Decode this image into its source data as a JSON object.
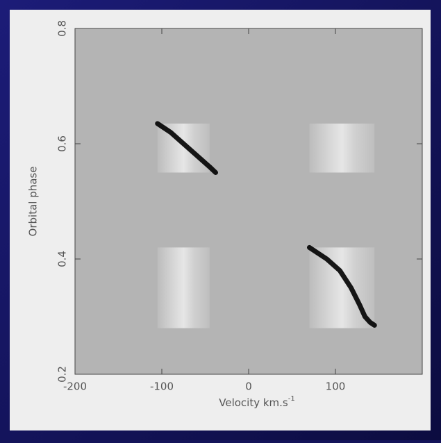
{
  "chart_data": {
    "type": "trailed-spectrum",
    "x_label": "Velocity  km.s",
    "x_label_superscript": "-1",
    "y_label": "Orbital phase",
    "xlim": [
      -200,
      200
    ],
    "ylim": [
      0.2,
      0.8
    ],
    "xticks": [
      -200,
      -100,
      0,
      100
    ],
    "yticks": [
      0.2,
      0.4,
      0.6,
      0.8
    ],
    "background": "#b4b4b4",
    "panels": [
      {
        "x": [
          -105,
          -45
        ],
        "y": [
          0.55,
          0.635
        ]
      },
      {
        "x": [
          70,
          145
        ],
        "y": [
          0.55,
          0.635
        ]
      },
      {
        "x": [
          -105,
          -45
        ],
        "y": [
          0.28,
          0.42
        ]
      },
      {
        "x": [
          70,
          145
        ],
        "y": [
          0.28,
          0.42
        ]
      }
    ],
    "series": [
      {
        "color": "#000000",
        "x": [
          -105,
          -90,
          -75,
          -60,
          -45,
          -38
        ],
        "values": [
          0.635,
          0.62,
          0.6,
          0.58,
          0.56,
          0.55
        ]
      },
      {
        "color": "#000000",
        "x": [
          70,
          90,
          105,
          118,
          128,
          134,
          140,
          145
        ],
        "values": [
          0.42,
          0.4,
          0.38,
          0.35,
          0.32,
          0.3,
          0.29,
          0.285
        ]
      }
    ]
  }
}
